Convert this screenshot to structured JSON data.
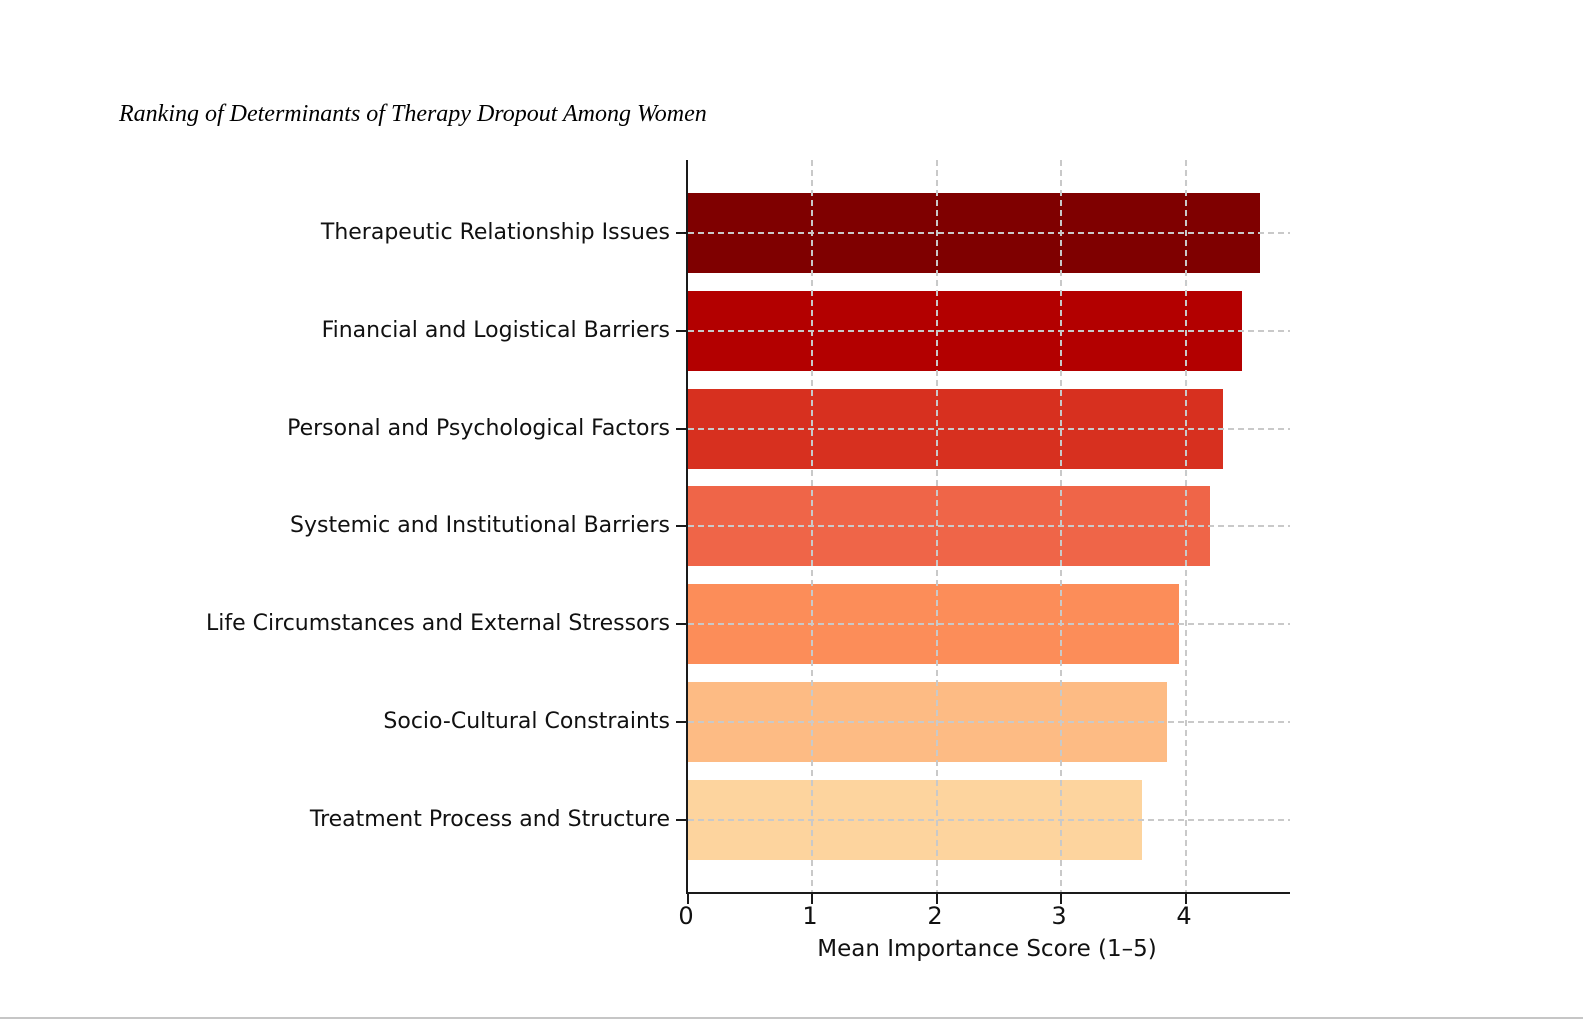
{
  "page": {
    "background": "#ffffff",
    "footer_divider_color": "#c6c6c6"
  },
  "chart_data": {
    "type": "bar",
    "orientation": "horizontal",
    "title": "Ranking of Determinants of Therapy Dropout Among Women",
    "xlabel": "Mean Importance Score (1–5)",
    "categories": [
      "Therapeutic Relationship Issues",
      "Financial and Logistical Barriers",
      "Personal and Psychological Factors",
      "Systemic and Institutional Barriers",
      "Life Circumstances and External Stressors",
      "Socio-Cultural Constraints",
      "Treatment Process and Structure"
    ],
    "values": [
      4.6,
      4.45,
      4.3,
      4.2,
      3.95,
      3.85,
      3.65
    ],
    "bar_colors": [
      "#7f0000",
      "#b30000",
      "#d7301f",
      "#ef6548",
      "#fc8d59",
      "#fdbb84",
      "#fdd49e"
    ],
    "xlim": [
      0,
      4.84
    ],
    "xticks": [
      0,
      1,
      2,
      3,
      4
    ],
    "grid": {
      "visible": true,
      "style": "dashed",
      "color": "#c9c9c9",
      "axes": "both",
      "above_bars": true
    },
    "legend": "none",
    "axis_color": "#1a1a1a"
  }
}
